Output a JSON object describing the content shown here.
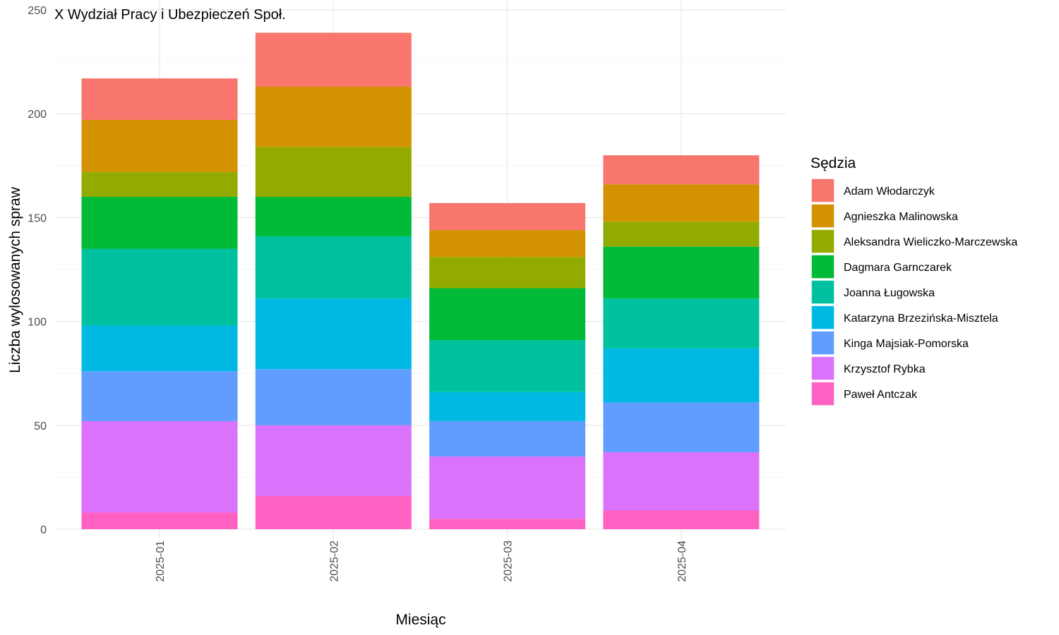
{
  "chart_data": {
    "type": "bar",
    "stacked": true,
    "title": "X Wydział Pracy i Ubezpieczeń Społ.",
    "xlabel": "Miesiąc",
    "ylabel": "Liczba wylosowanych spraw",
    "ylim": [
      0,
      250
    ],
    "yticks": [
      0,
      50,
      100,
      150,
      200,
      250
    ],
    "grid": true,
    "legend_title": "Sędzia",
    "legend_position": "right",
    "categories": [
      "2025-01",
      "2025-02",
      "2025-03",
      "2025-04"
    ],
    "series": [
      {
        "name": "Paweł Antczak",
        "color": "#FF61C3",
        "values": [
          8,
          16,
          5,
          9
        ]
      },
      {
        "name": "Krzysztof Rybka",
        "color": "#DB72FB",
        "values": [
          44,
          34,
          30,
          28
        ]
      },
      {
        "name": "Kinga Majsiak-Pomorska",
        "color": "#619CFF",
        "values": [
          24,
          27,
          17,
          24
        ]
      },
      {
        "name": "Katarzyna Brzezińska-Misztela",
        "color": "#00B9E3",
        "values": [
          22,
          34,
          14,
          26
        ]
      },
      {
        "name": "Joanna Ługowska",
        "color": "#00C19F",
        "values": [
          37,
          30,
          25,
          24
        ]
      },
      {
        "name": "Dagmara Garnczarek",
        "color": "#00BA38",
        "values": [
          25,
          19,
          25,
          25
        ]
      },
      {
        "name": "Aleksandra Wieliczko-Marczewska",
        "color": "#93AA00",
        "values": [
          12,
          24,
          15,
          12
        ]
      },
      {
        "name": "Agnieszka Malinowska",
        "color": "#D39200",
        "values": [
          25,
          29,
          13,
          18
        ]
      },
      {
        "name": "Adam Włodarczyk",
        "color": "#F8766D",
        "values": [
          20,
          26,
          13,
          14
        ]
      }
    ]
  }
}
